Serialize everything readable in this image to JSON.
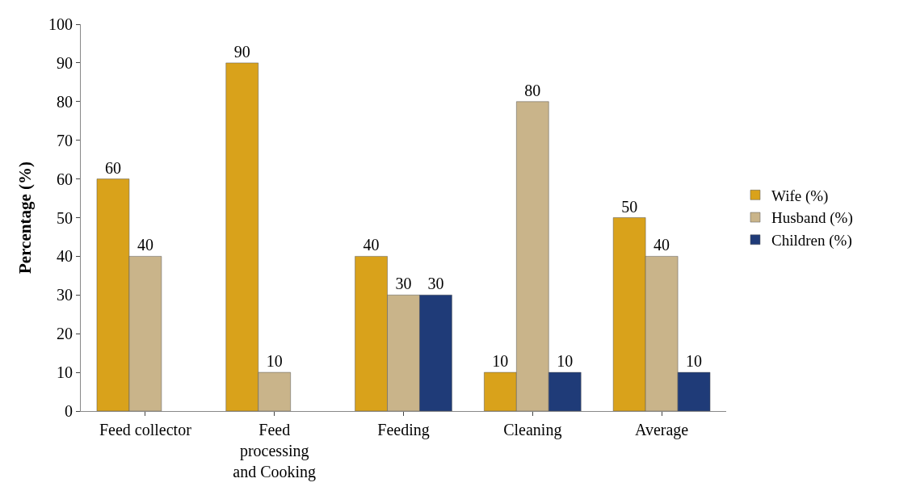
{
  "chart_data": {
    "type": "bar",
    "ylabel": "Percentage (%)",
    "categories": [
      "Feed collector",
      "Feed processing and Cooking",
      "Feeding",
      "Cleaning",
      "Average"
    ],
    "series": [
      {
        "name": "Wife (%)",
        "color": "#d9a21b",
        "values": [
          60,
          90,
          40,
          10,
          50
        ]
      },
      {
        "name": "Husband (%)",
        "color": "#c9b48a",
        "values": [
          40,
          10,
          30,
          80,
          40
        ]
      },
      {
        "name": "Children (%)",
        "color": "#1f3b78",
        "values": [
          null,
          null,
          30,
          10,
          10
        ]
      }
    ],
    "ylim": [
      0,
      100
    ],
    "yticks": [
      0,
      10,
      20,
      30,
      40,
      50,
      60,
      70,
      80,
      90,
      100
    ],
    "legend": "right",
    "data_labels": true
  }
}
